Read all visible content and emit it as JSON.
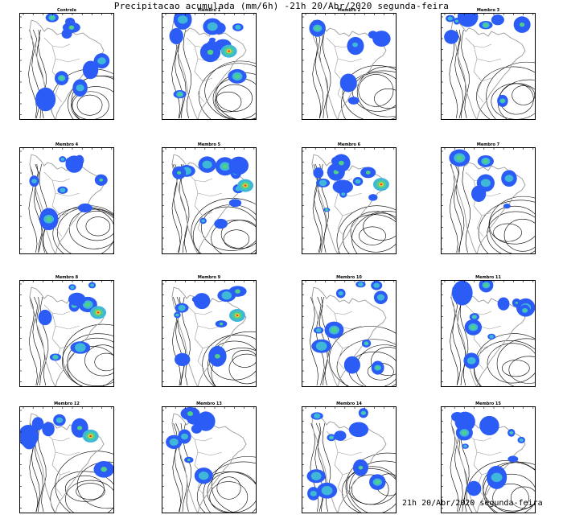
{
  "title": "Precipitacao acumulada (mm/6h) -21h 20/Abr/2020 segunda-feira",
  "footer": "21h 20/Abr/2020 segunda-feira",
  "panels": [
    {
      "label": "Controle"
    },
    {
      "label": "Membro 1"
    },
    {
      "label": "Membro 2"
    },
    {
      "label": "Membro 3"
    },
    {
      "label": "Membro 4"
    },
    {
      "label": "Membro 5"
    },
    {
      "label": "Membro 6"
    },
    {
      "label": "Membro 7"
    },
    {
      "label": "Membro 8"
    },
    {
      "label": "Membro 9"
    },
    {
      "label": "Membro 10"
    },
    {
      "label": "Membro 11"
    },
    {
      "label": "Membro 12"
    },
    {
      "label": "Membro 13"
    },
    {
      "label": "Membro 14"
    },
    {
      "label": "Membro 15"
    }
  ],
  "colors": {
    "precip_low": "#2b5cf5",
    "precip_mid": "#3fb7d8",
    "precip_high": "#4fd08a",
    "precip_peak": "#f2d03b",
    "precip_max": "#e6452a",
    "coastline": "#9a9a9a",
    "isobar": "#000000"
  }
}
